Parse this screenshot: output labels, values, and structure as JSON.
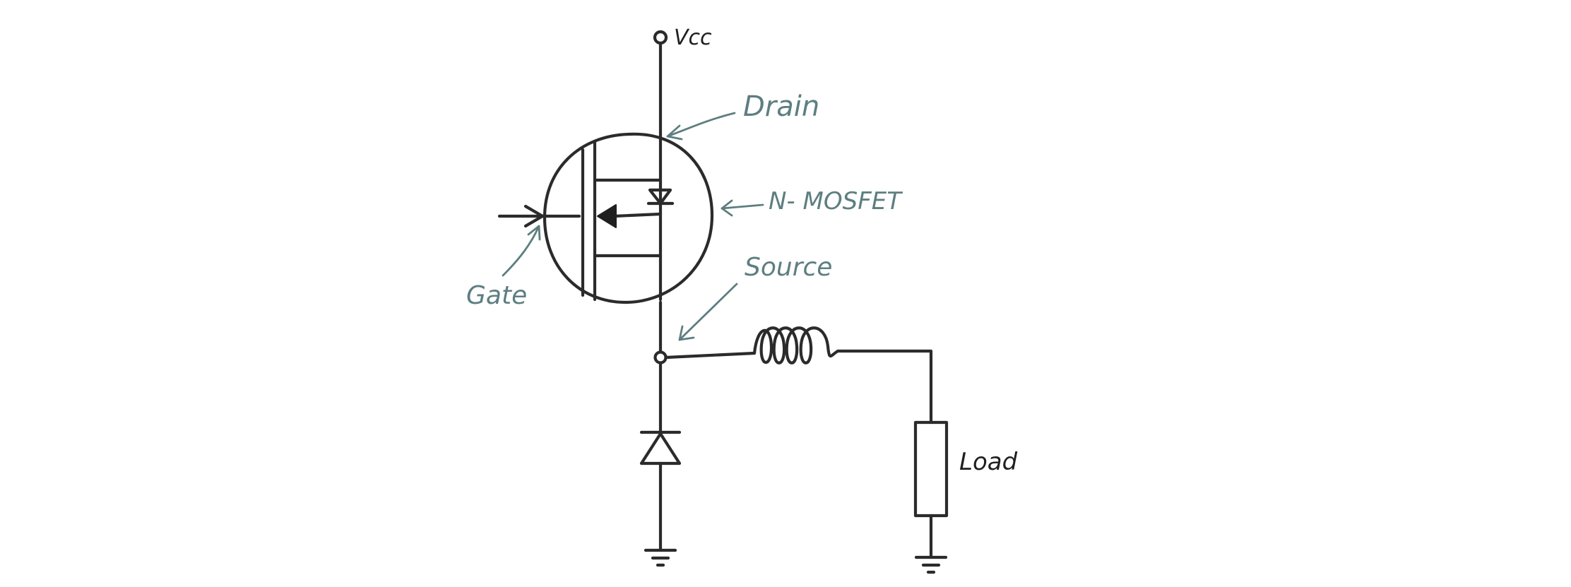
{
  "labels": {
    "vcc": "Vcc",
    "drain": "Drain",
    "mosfet": "N- MOSFET",
    "source": "Source",
    "gate": "Gate",
    "load": "Load"
  },
  "colors": {
    "ink": "#2b2b2b",
    "annotation": "#5e7e80",
    "background": "#ffffff"
  },
  "components": {
    "transistor": "n-channel-mosfet",
    "freewheel": "diode",
    "filter": "inductor",
    "output": "resistor-load"
  }
}
